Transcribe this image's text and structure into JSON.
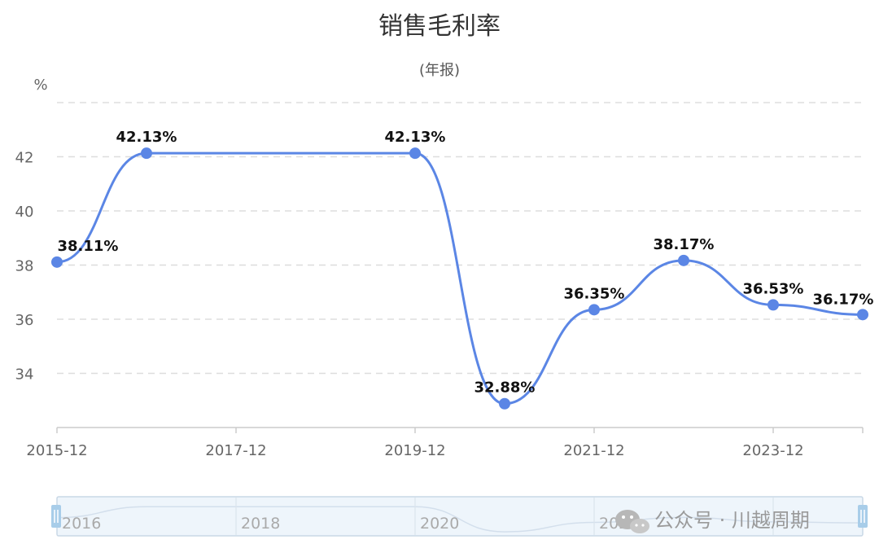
{
  "chart_data": {
    "type": "line",
    "title": "销售毛利率",
    "subtitle": "(年报)",
    "ylabel": "%",
    "x": [
      "2015-12",
      "2016-12",
      "2017-12",
      "2018-12",
      "2019-12",
      "2020-12",
      "2021-12",
      "2022-12",
      "2023-12",
      "2024-12"
    ],
    "x_tick_labels": [
      "2015-12",
      "2017-12",
      "2019-12",
      "2021-12",
      "2023-12"
    ],
    "series": [
      {
        "values": [
          38.11,
          42.13,
          42.13,
          42.13,
          42.13,
          32.88,
          36.35,
          38.17,
          36.53,
          36.17
        ],
        "data_labels": [
          "38.11%",
          "42.13%",
          "",
          "",
          "42.13%",
          "32.88%",
          "36.35%",
          "38.17%",
          "36.53%",
          "36.17%"
        ]
      }
    ],
    "ylim": [
      32,
      44
    ],
    "y_ticks": [
      34,
      36,
      38,
      40,
      42
    ],
    "grid": true,
    "legend": "none",
    "smooth": true
  },
  "colors": {
    "series": "#5B86E5",
    "grid": "#dddddd",
    "slider_fill": "#eef5fb",
    "slider_border": "#c9d8e6",
    "handle": "#a8cde9"
  },
  "slider": {
    "labels": [
      "2016",
      "2018",
      "2020",
      "2022"
    ],
    "left_handle_icon": "drag-handle-icon",
    "right_handle_icon": "drag-handle-icon"
  },
  "watermark": {
    "text": "公众号 · 川越周期",
    "icon": "wechat-icon"
  }
}
